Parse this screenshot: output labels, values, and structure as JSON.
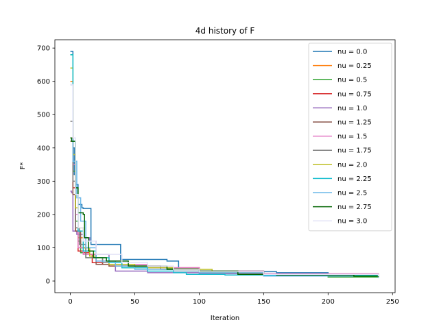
{
  "chart_data": {
    "type": "line",
    "title": "4d history of F",
    "xlabel": "Iteration",
    "ylabel": "F*",
    "xlim": [
      -12,
      252
    ],
    "ylim": [
      -35,
      725
    ],
    "xticks": [
      0,
      50,
      100,
      150,
      200,
      250
    ],
    "yticks": [
      0,
      100,
      200,
      300,
      400,
      500,
      600,
      700
    ],
    "legend_position": "top-right",
    "grid": false,
    "series": [
      {
        "name": "nu = 0.0",
        "color": "#1f77b4",
        "points": [
          [
            0,
            690
          ],
          [
            2,
            400
          ],
          [
            3,
            320
          ],
          [
            4,
            290
          ],
          [
            6,
            230
          ],
          [
            9,
            220
          ],
          [
            10,
            218
          ],
          [
            15,
            218
          ],
          [
            16,
            110
          ],
          [
            38,
            110
          ],
          [
            39,
            65
          ],
          [
            74,
            65
          ],
          [
            75,
            60
          ],
          [
            82,
            60
          ],
          [
            84,
            35
          ],
          [
            100,
            30
          ],
          [
            150,
            28
          ],
          [
            160,
            25
          ],
          [
            200,
            20
          ],
          [
            239,
            18
          ]
        ]
      },
      {
        "name": "nu = 0.25",
        "color": "#ff7f0e",
        "points": [
          [
            0,
            600
          ],
          [
            2,
            380
          ],
          [
            4,
            160
          ],
          [
            6,
            130
          ],
          [
            10,
            90
          ],
          [
            15,
            80
          ],
          [
            20,
            55
          ],
          [
            30,
            45
          ],
          [
            50,
            40
          ],
          [
            80,
            30
          ],
          [
            100,
            25
          ],
          [
            150,
            20
          ],
          [
            239,
            15
          ]
        ]
      },
      {
        "name": "nu = 0.5",
        "color": "#2ca02c",
        "points": [
          [
            0,
            680
          ],
          [
            2,
            330
          ],
          [
            4,
            180
          ],
          [
            6,
            120
          ],
          [
            8,
            85
          ],
          [
            12,
            70
          ],
          [
            25,
            50
          ],
          [
            40,
            40
          ],
          [
            75,
            38
          ],
          [
            100,
            30
          ],
          [
            150,
            18
          ],
          [
            200,
            12
          ],
          [
            239,
            10
          ]
        ]
      },
      {
        "name": "nu = 0.75",
        "color": "#d62728",
        "points": [
          [
            0,
            430
          ],
          [
            2,
            280
          ],
          [
            4,
            150
          ],
          [
            6,
            90
          ],
          [
            10,
            85
          ],
          [
            15,
            80
          ],
          [
            17,
            55
          ],
          [
            25,
            50
          ],
          [
            40,
            45
          ],
          [
            70,
            40
          ],
          [
            100,
            25
          ],
          [
            150,
            20
          ],
          [
            239,
            12
          ]
        ]
      },
      {
        "name": "nu = 1.0",
        "color": "#9467bd",
        "points": [
          [
            0,
            270
          ],
          [
            1,
            265
          ],
          [
            2,
            150
          ],
          [
            5,
            140
          ],
          [
            10,
            130
          ],
          [
            15,
            120
          ],
          [
            20,
            80
          ],
          [
            30,
            60
          ],
          [
            35,
            30
          ],
          [
            60,
            25
          ],
          [
            100,
            22
          ],
          [
            150,
            18
          ],
          [
            239,
            15
          ]
        ]
      },
      {
        "name": "nu = 1.25",
        "color": "#8c564b",
        "points": [
          [
            0,
            420
          ],
          [
            2,
            260
          ],
          [
            4,
            150
          ],
          [
            8,
            100
          ],
          [
            12,
            90
          ],
          [
            20,
            50
          ],
          [
            30,
            45
          ],
          [
            50,
            40
          ],
          [
            80,
            35
          ],
          [
            100,
            28
          ],
          [
            150,
            22
          ],
          [
            239,
            15
          ]
        ]
      },
      {
        "name": "nu = 1.5",
        "color": "#e377c2",
        "points": [
          [
            0,
            590
          ],
          [
            2,
            350
          ],
          [
            4,
            200
          ],
          [
            6,
            100
          ],
          [
            10,
            80
          ],
          [
            20,
            60
          ],
          [
            40,
            50
          ],
          [
            60,
            40
          ],
          [
            100,
            30
          ],
          [
            150,
            22
          ],
          [
            239,
            14
          ]
        ]
      },
      {
        "name": "nu = 1.75",
        "color": "#7f7f7f",
        "points": [
          [
            0,
            480
          ],
          [
            2,
            300
          ],
          [
            4,
            160
          ],
          [
            7,
            110
          ],
          [
            12,
            70
          ],
          [
            25,
            55
          ],
          [
            40,
            45
          ],
          [
            70,
            35
          ],
          [
            100,
            28
          ],
          [
            150,
            20
          ],
          [
            239,
            12
          ]
        ]
      },
      {
        "name": "nu = 2.0",
        "color": "#bcbd22",
        "points": [
          [
            0,
            640
          ],
          [
            2,
            380
          ],
          [
            4,
            220
          ],
          [
            6,
            160
          ],
          [
            10,
            100
          ],
          [
            15,
            75
          ],
          [
            20,
            70
          ],
          [
            30,
            50
          ],
          [
            50,
            40
          ],
          [
            80,
            35
          ],
          [
            110,
            25
          ],
          [
            150,
            18
          ],
          [
            239,
            12
          ]
        ]
      },
      {
        "name": "nu = 2.25",
        "color": "#17becf",
        "points": [
          [
            0,
            680
          ],
          [
            2,
            420
          ],
          [
            4,
            260
          ],
          [
            6,
            150
          ],
          [
            10,
            90
          ],
          [
            20,
            70
          ],
          [
            30,
            55
          ],
          [
            40,
            40
          ],
          [
            60,
            30
          ],
          [
            80,
            25
          ],
          [
            90,
            20
          ],
          [
            120,
            18
          ],
          [
            239,
            10
          ]
        ]
      },
      {
        "name": "nu = 2.5",
        "color": "#6bb8e8",
        "points": [
          [
            0,
            590
          ],
          [
            2,
            360
          ],
          [
            5,
            250
          ],
          [
            8,
            180
          ],
          [
            12,
            100
          ],
          [
            20,
            60
          ],
          [
            35,
            45
          ],
          [
            50,
            35
          ],
          [
            80,
            30
          ],
          [
            100,
            25
          ],
          [
            150,
            15
          ],
          [
            239,
            10
          ]
        ]
      },
      {
        "name": "nu = 2.75",
        "color": "#006400",
        "points": [
          [
            0,
            430
          ],
          [
            1,
            420
          ],
          [
            3,
            420
          ],
          [
            4,
            280
          ],
          [
            6,
            205
          ],
          [
            10,
            200
          ],
          [
            11,
            130
          ],
          [
            14,
            90
          ],
          [
            18,
            70
          ],
          [
            28,
            60
          ],
          [
            45,
            45
          ],
          [
            75,
            35
          ],
          [
            100,
            30
          ],
          [
            130,
            20
          ],
          [
            160,
            18
          ],
          [
            220,
            15
          ],
          [
            239,
            12
          ]
        ]
      },
      {
        "name": "nu = 3.0",
        "color": "#e3e3f7",
        "points": [
          [
            0,
            590
          ],
          [
            2,
            430
          ],
          [
            4,
            260
          ],
          [
            6,
            160
          ],
          [
            10,
            120
          ],
          [
            20,
            80
          ],
          [
            40,
            55
          ],
          [
            60,
            45
          ],
          [
            80,
            35
          ],
          [
            100,
            28
          ],
          [
            150,
            20
          ],
          [
            239,
            14
          ]
        ]
      }
    ]
  }
}
